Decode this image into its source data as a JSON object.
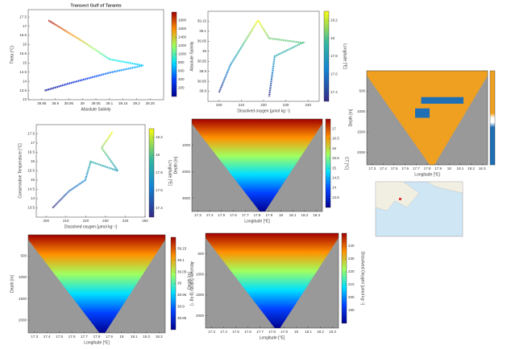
{
  "chart_data": [
    {
      "type": "scatter",
      "title": "Transect Gulf of Taranto",
      "xlabel": "Absolute Salinity",
      "ylabel": "Theta (°C)",
      "colormap": "jet",
      "xlim": [
        38.8,
        39.3
      ],
      "xticks": [
        38.85,
        38.9,
        38.95,
        39,
        39.05,
        39.1,
        39.15,
        39.2,
        39.25
      ],
      "ylim": [
        13,
        17.9
      ],
      "yticks": [
        13,
        13.5,
        14,
        14.5,
        15,
        15.5,
        16,
        16.5,
        17,
        17.5
      ],
      "clim": [
        0,
        2000
      ],
      "cticks": [
        200,
        400,
        600,
        800,
        1000,
        1200,
        1400,
        1600,
        1800
      ]
    },
    {
      "type": "scatter",
      "xlabel": "Dissolved oxygen [μmol kg⁻¹]",
      "ylabel": "Absolute Salinity",
      "clabel": "Longitude [°E]",
      "colormap": "parula",
      "xlim": [
        195,
        245
      ],
      "xticks": [
        200,
        210,
        220,
        230,
        240
      ],
      "ylim": [
        38.75,
        39.2
      ],
      "yticks": [
        38.8,
        38.85,
        38.9,
        38.95,
        39,
        39.05,
        39.1,
        39.15
      ],
      "clim": [
        17.3,
        18.3
      ],
      "cticks": [
        17.4,
        17.6,
        17.8,
        18,
        18.2
      ]
    },
    {
      "type": "section",
      "xlabel": "Longitude [°E]",
      "ylabel": "Depth [m]",
      "colormap": "orange-blue",
      "invert_y": true,
      "xlim": [
        17.25,
        18.35
      ],
      "xticks": [
        17.3,
        17.4,
        17.5,
        17.6,
        17.7,
        17.8,
        17.9,
        18,
        18.1,
        18.2,
        18.3
      ],
      "ylim": [
        0,
        2300
      ],
      "yticks": [
        500,
        1000,
        1500,
        2000
      ]
    },
    {
      "type": "scatter",
      "xlabel": "Dissolved oxygen [μmol kg⁻¹]",
      "ylabel": "Conservative Temperature [°C]",
      "clabel": "Longitude [°E]",
      "colormap": "parula",
      "xlim": [
        195,
        250
      ],
      "xticks": [
        200,
        210,
        220,
        230,
        240,
        250
      ],
      "ylim": [
        13,
        18
      ],
      "yticks": [
        13.5,
        14,
        14.5,
        15,
        15.5,
        16,
        16.5,
        17,
        17.5
      ],
      "clim": [
        17.3,
        18.3
      ],
      "cticks": [
        17.4,
        17.6,
        17.8,
        18,
        18.2
      ]
    },
    {
      "type": "section",
      "xlabel": "Longitude [°E]",
      "ylabel": "Depth [m]",
      "clabel": "CT [°C]",
      "colormap": "jet",
      "invert_y": true,
      "xlim": [
        17.25,
        18.35
      ],
      "xticks": [
        17.3,
        17.4,
        17.5,
        17.6,
        17.7,
        17.8,
        17.9,
        18,
        18.1,
        18.2,
        18.3
      ],
      "ylim": [
        0,
        3500
      ],
      "yticks": [
        1000,
        2000,
        3000
      ],
      "clim": [
        13,
        17.5
      ],
      "cticks": [
        13.5,
        14,
        14.5,
        15,
        15.5,
        16,
        16.5,
        17
      ]
    },
    {
      "type": "section",
      "xlabel": "Longitude [°E]",
      "ylabel": "Depth [m]",
      "clabel": "Absolute Salinity [g kg⁻¹]",
      "colormap": "jet",
      "invert_y": true,
      "xlim": [
        17.25,
        18.35
      ],
      "xticks": [
        17.3,
        17.4,
        17.5,
        17.6,
        17.7,
        17.8,
        17.9,
        18,
        18.1,
        18.2,
        18.3
      ],
      "ylim": [
        0,
        2300
      ],
      "yticks": [
        500,
        1000,
        1500,
        2000
      ],
      "clim": [
        38.8,
        39.2
      ],
      "cticks": [
        38.85,
        38.9,
        38.95,
        39,
        39.05,
        39.1,
        39.15
      ]
    },
    {
      "type": "section",
      "xlabel": "Longitude [°E]",
      "ylabel": "Depth [m]",
      "clabel": "Dissolved Oxygen [μmol kg⁻¹]",
      "colormap": "jet",
      "invert_y": true,
      "xlim": [
        17.25,
        18.35
      ],
      "xticks": [
        17.3,
        17.4,
        17.5,
        17.6,
        17.7,
        17.8,
        17.9,
        18,
        18.1,
        18.2,
        18.3
      ],
      "ylim": [
        0,
        2300
      ],
      "yticks": [
        500,
        1000,
        1500,
        2000
      ],
      "clim": [
        180,
        250
      ],
      "cticks": [
        190,
        200,
        210,
        220,
        230,
        240
      ]
    }
  ]
}
